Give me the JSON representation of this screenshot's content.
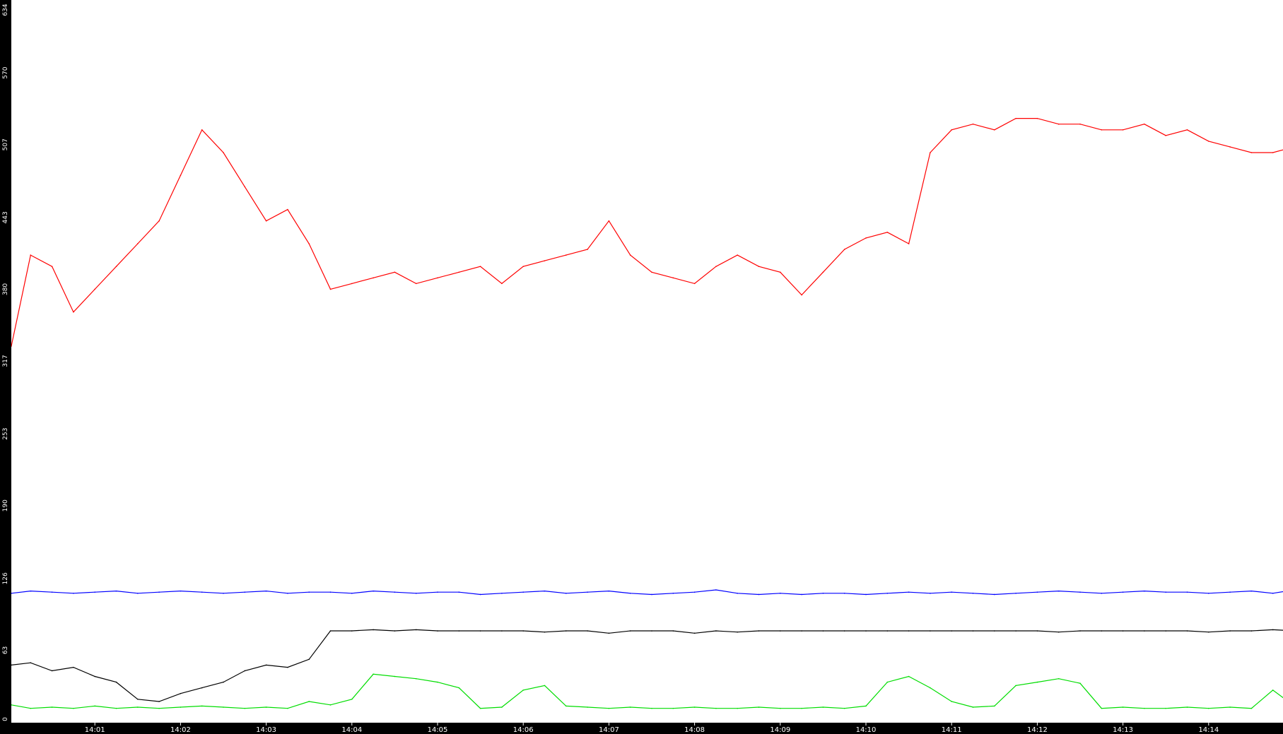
{
  "chart_data": {
    "type": "line",
    "title": "",
    "xlabel": "",
    "ylabel": "",
    "ylim": [
      0,
      634
    ],
    "xlim": [
      "14:00:00",
      "14:15:00"
    ],
    "grid": false,
    "legend": "none",
    "y_ticks": [
      "0",
      "63",
      "126",
      "190",
      "253",
      "317",
      "380",
      "443",
      "507",
      "570",
      "634"
    ],
    "x_ticks": [
      "14:01",
      "14:02",
      "14:03",
      "14:04",
      "14:05",
      "14:06",
      "14:07",
      "14:08",
      "14:09",
      "14:10",
      "14:11",
      "14:12",
      "14:13",
      "14:14"
    ],
    "x": [
      "14:00:00",
      "14:00:15",
      "14:00:30",
      "14:00:45",
      "14:01:00",
      "14:01:15",
      "14:01:30",
      "14:01:45",
      "14:02:00",
      "14:02:15",
      "14:02:30",
      "14:02:45",
      "14:03:00",
      "14:03:15",
      "14:03:30",
      "14:03:45",
      "14:04:00",
      "14:04:15",
      "14:04:30",
      "14:04:45",
      "14:05:00",
      "14:05:15",
      "14:05:30",
      "14:05:45",
      "14:06:00",
      "14:06:15",
      "14:06:30",
      "14:06:45",
      "14:07:00",
      "14:07:15",
      "14:07:30",
      "14:07:45",
      "14:08:00",
      "14:08:15",
      "14:08:30",
      "14:08:45",
      "14:09:00",
      "14:09:15",
      "14:09:30",
      "14:09:45",
      "14:10:00",
      "14:10:15",
      "14:10:30",
      "14:10:45",
      "14:11:00",
      "14:11:15",
      "14:11:30",
      "14:11:45",
      "14:12:00",
      "14:12:15",
      "14:12:30",
      "14:12:45",
      "14:13:00",
      "14:13:15",
      "14:13:30",
      "14:13:45",
      "14:14:00",
      "14:14:15",
      "14:14:30",
      "14:14:45",
      "14:15:00"
    ],
    "series": [
      {
        "color": "#ff0000",
        "values": [
          330,
          410,
          400,
          360,
          380,
          400,
          420,
          440,
          480,
          520,
          500,
          470,
          440,
          450,
          420,
          380,
          385,
          390,
          395,
          385,
          390,
          395,
          400,
          385,
          400,
          405,
          410,
          415,
          440,
          410,
          395,
          390,
          385,
          400,
          410,
          400,
          395,
          375,
          395,
          415,
          425,
          430,
          420,
          500,
          520,
          525,
          520,
          530,
          530,
          525,
          525,
          520,
          520,
          525,
          515,
          520,
          510,
          505,
          500,
          500,
          505
        ]
      },
      {
        "color": "#0000ff",
        "values": [
          113,
          115,
          114,
          113,
          114,
          115,
          113,
          114,
          115,
          114,
          113,
          114,
          115,
          113,
          114,
          114,
          113,
          115,
          114,
          113,
          114,
          114,
          112,
          113,
          114,
          115,
          113,
          114,
          115,
          113,
          112,
          113,
          114,
          116,
          113,
          112,
          113,
          112,
          113,
          113,
          112,
          113,
          114,
          113,
          114,
          113,
          112,
          113,
          114,
          115,
          114,
          113,
          114,
          115,
          114,
          114,
          113,
          114,
          115,
          113,
          116
        ]
      },
      {
        "color": "#000000",
        "values": [
          50,
          52,
          45,
          48,
          40,
          35,
          20,
          18,
          25,
          30,
          35,
          45,
          50,
          48,
          55,
          80,
          80,
          81,
          80,
          81,
          80,
          80,
          80,
          80,
          80,
          79,
          80,
          80,
          78,
          80,
          80,
          80,
          78,
          80,
          79,
          80,
          80,
          80,
          80,
          80,
          80,
          80,
          80,
          80,
          80,
          80,
          80,
          80,
          80,
          79,
          80,
          80,
          80,
          80,
          80,
          80,
          79,
          80,
          80,
          81,
          80
        ]
      },
      {
        "color": "#00dd00",
        "values": [
          15,
          12,
          13,
          12,
          14,
          12,
          13,
          12,
          13,
          14,
          13,
          12,
          13,
          12,
          18,
          15,
          20,
          42,
          40,
          38,
          35,
          30,
          12,
          13,
          28,
          32,
          14,
          13,
          12,
          13,
          12,
          12,
          13,
          12,
          12,
          13,
          12,
          12,
          13,
          12,
          14,
          35,
          40,
          30,
          18,
          13,
          14,
          32,
          35,
          38,
          34,
          12,
          13,
          12,
          12,
          13,
          12,
          13,
          12,
          28,
          14
        ]
      }
    ]
  }
}
